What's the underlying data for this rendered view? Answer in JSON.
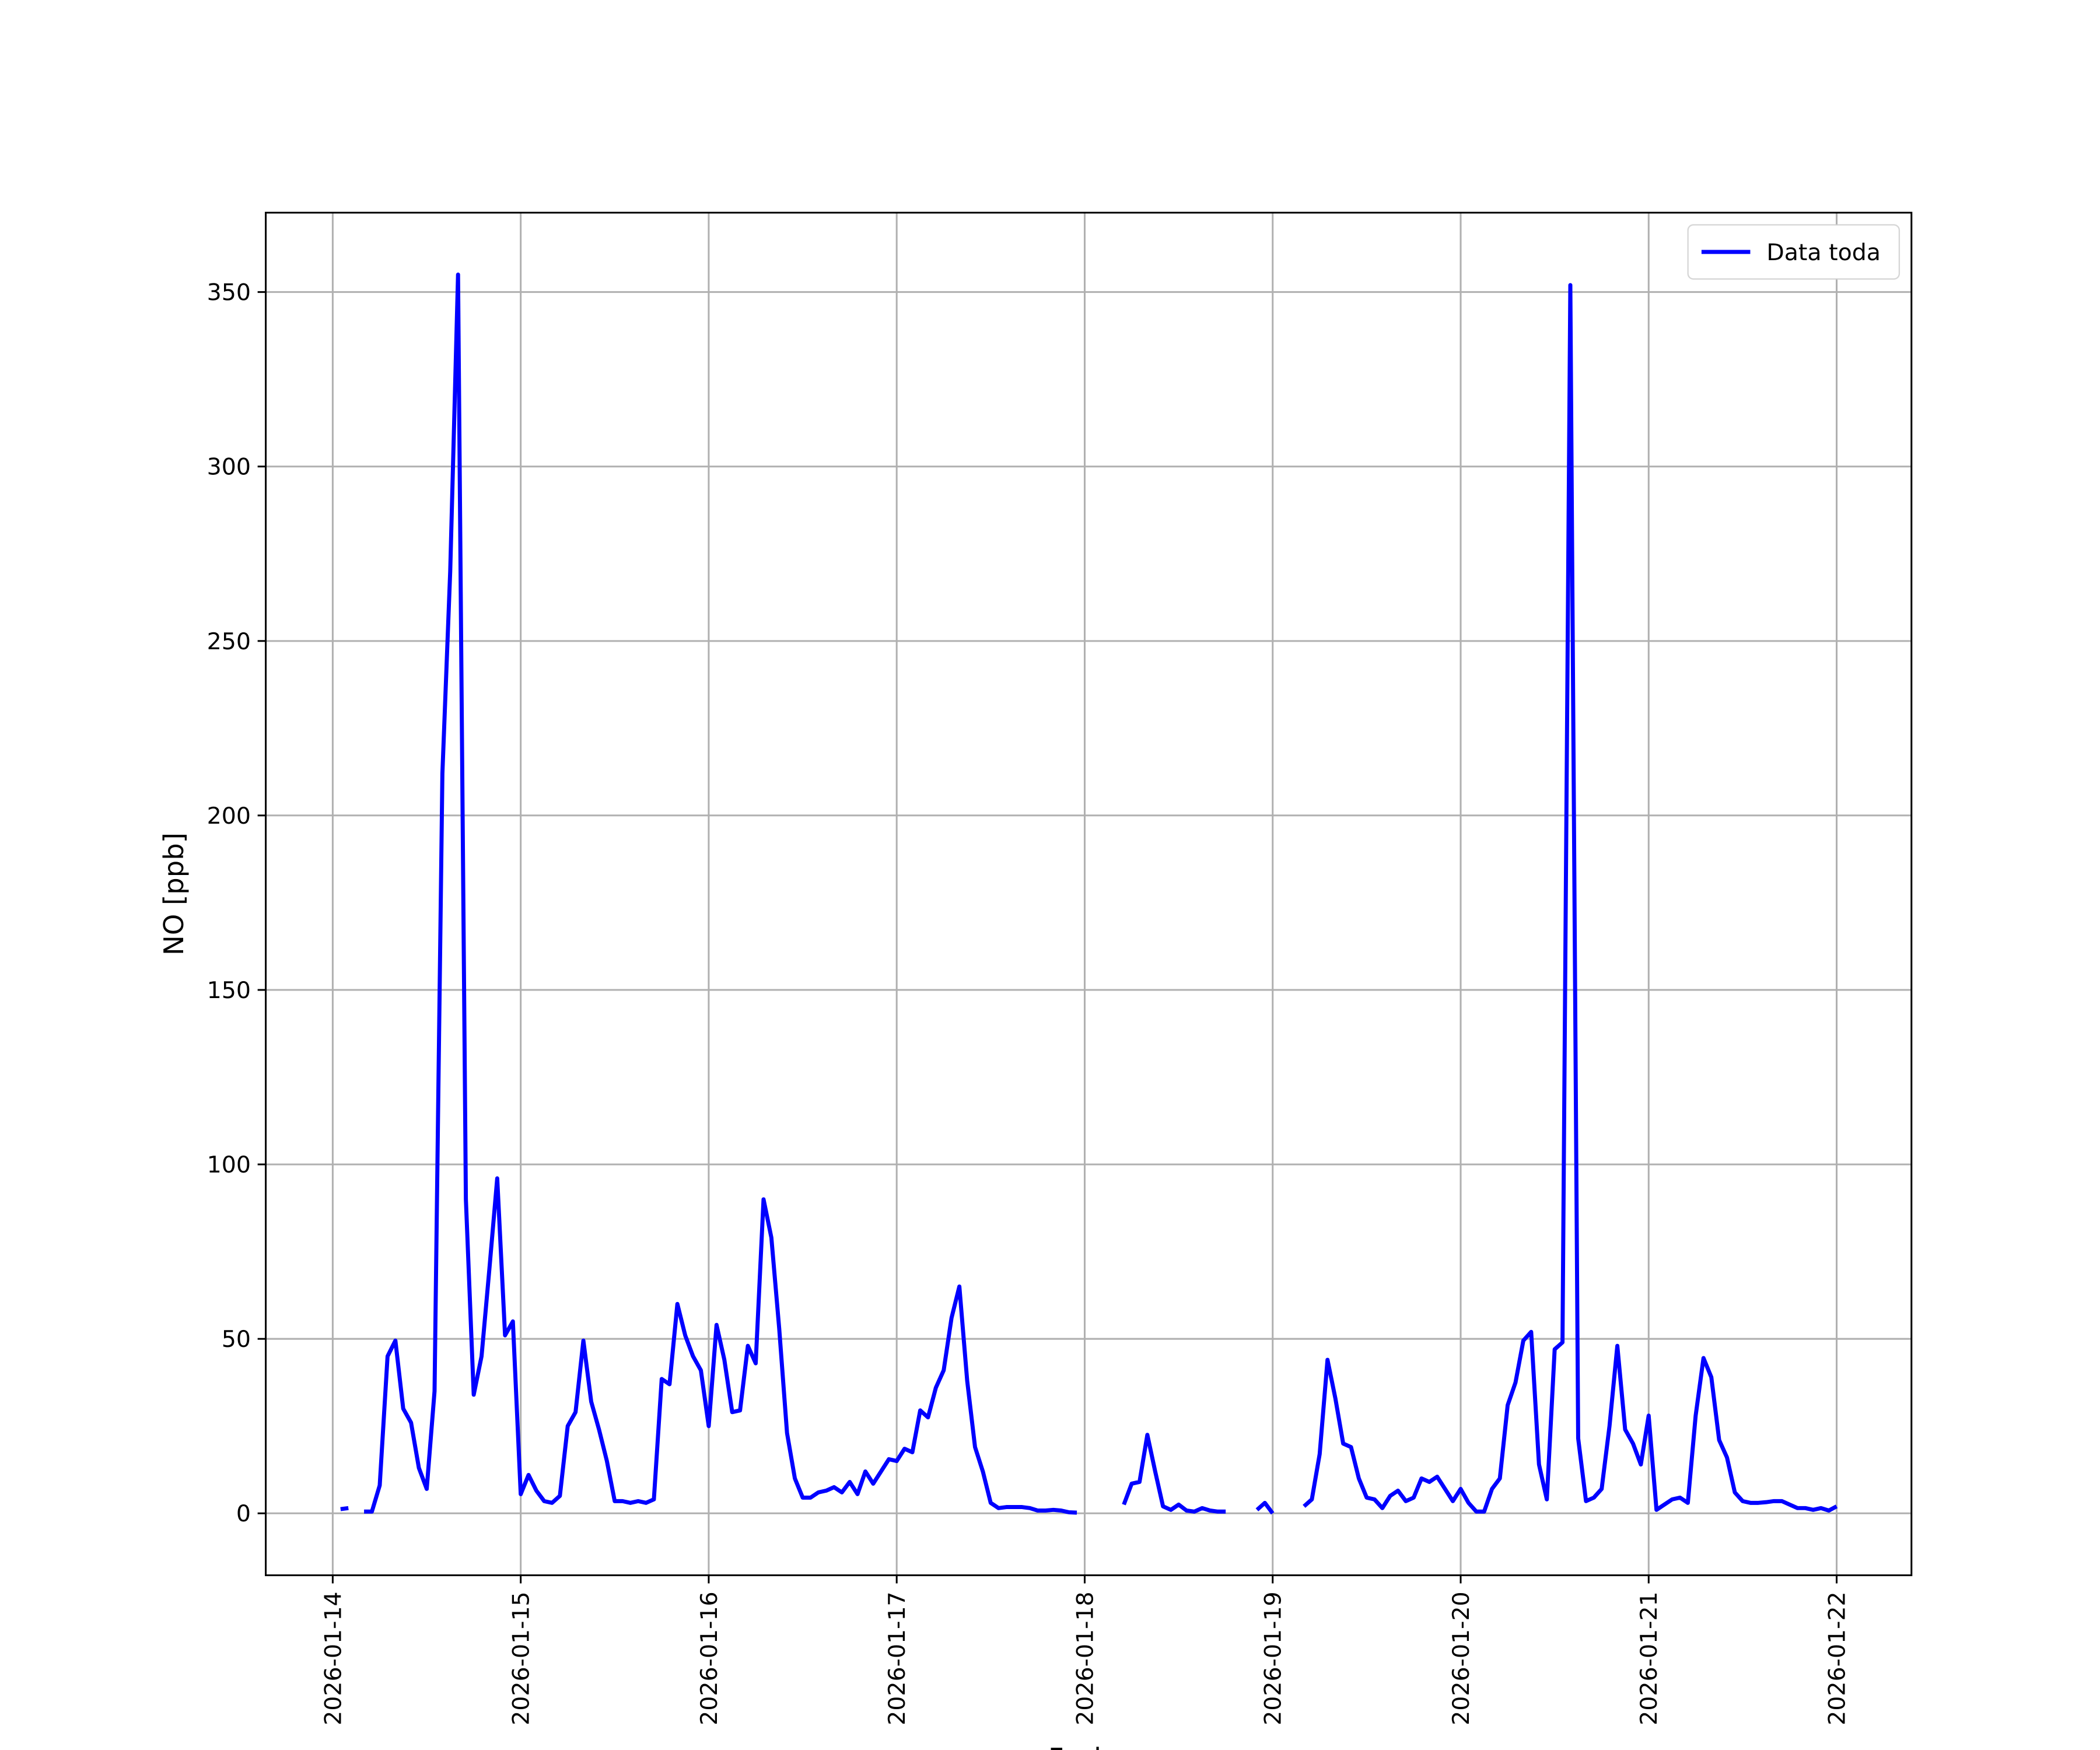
{
  "chart_data": {
    "type": "line",
    "xlabel": "Fecha",
    "ylabel": "NO [ppb]",
    "x": [
      "2026-01-14 00:00",
      "2026-01-14 01:00",
      "2026-01-14 02:00",
      "2026-01-14 03:00",
      "2026-01-14 04:00",
      "2026-01-14 05:00",
      "2026-01-14 06:00",
      "2026-01-14 07:00",
      "2026-01-14 08:00",
      "2026-01-14 09:00",
      "2026-01-14 10:00",
      "2026-01-14 11:00",
      "2026-01-14 12:00",
      "2026-01-14 13:00",
      "2026-01-14 14:00",
      "2026-01-14 15:00",
      "2026-01-14 16:00",
      "2026-01-14 17:00",
      "2026-01-14 18:00",
      "2026-01-14 19:00",
      "2026-01-14 20:00",
      "2026-01-14 21:00",
      "2026-01-14 22:00",
      "2026-01-14 23:00",
      "2026-01-15 00:00",
      "2026-01-15 01:00",
      "2026-01-15 02:00",
      "2026-01-15 03:00",
      "2026-01-15 04:00",
      "2026-01-15 05:00",
      "2026-01-15 06:00",
      "2026-01-15 07:00",
      "2026-01-15 08:00",
      "2026-01-15 09:00",
      "2026-01-15 10:00",
      "2026-01-15 11:00",
      "2026-01-15 12:00",
      "2026-01-15 13:00",
      "2026-01-15 14:00",
      "2026-01-15 15:00",
      "2026-01-15 16:00",
      "2026-01-15 17:00",
      "2026-01-15 18:00",
      "2026-01-15 19:00",
      "2026-01-15 20:00",
      "2026-01-15 21:00",
      "2026-01-15 22:00",
      "2026-01-15 23:00",
      "2026-01-16 00:00",
      "2026-01-16 01:00",
      "2026-01-16 02:00",
      "2026-01-16 03:00",
      "2026-01-16 04:00",
      "2026-01-16 05:00",
      "2026-01-16 06:00",
      "2026-01-16 07:00",
      "2026-01-16 08:00",
      "2026-01-16 09:00",
      "2026-01-16 10:00",
      "2026-01-16 11:00",
      "2026-01-16 12:00",
      "2026-01-16 13:00",
      "2026-01-16 14:00",
      "2026-01-16 15:00",
      "2026-01-16 16:00",
      "2026-01-16 17:00",
      "2026-01-16 18:00",
      "2026-01-16 19:00",
      "2026-01-16 20:00",
      "2026-01-16 21:00",
      "2026-01-16 22:00",
      "2026-01-16 23:00",
      "2026-01-17 00:00",
      "2026-01-17 01:00",
      "2026-01-17 02:00",
      "2026-01-17 03:00",
      "2026-01-17 04:00",
      "2026-01-17 05:00",
      "2026-01-17 06:00",
      "2026-01-17 07:00",
      "2026-01-17 08:00",
      "2026-01-17 09:00",
      "2026-01-17 10:00",
      "2026-01-17 11:00",
      "2026-01-17 12:00",
      "2026-01-17 13:00",
      "2026-01-17 14:00",
      "2026-01-17 15:00",
      "2026-01-17 16:00",
      "2026-01-17 17:00",
      "2026-01-17 18:00",
      "2026-01-17 19:00",
      "2026-01-17 20:00",
      "2026-01-17 21:00",
      "2026-01-17 22:00",
      "2026-01-17 23:00",
      "2026-01-18 00:00",
      "2026-01-18 01:00",
      "2026-01-18 02:00",
      "2026-01-18 03:00",
      "2026-01-18 04:00",
      "2026-01-18 05:00",
      "2026-01-18 06:00",
      "2026-01-18 07:00",
      "2026-01-18 08:00",
      "2026-01-18 09:00",
      "2026-01-18 10:00",
      "2026-01-18 11:00",
      "2026-01-18 12:00",
      "2026-01-18 13:00",
      "2026-01-18 14:00",
      "2026-01-18 15:00",
      "2026-01-18 16:00",
      "2026-01-18 17:00",
      "2026-01-18 18:00",
      "2026-01-18 19:00",
      "2026-01-18 20:00",
      "2026-01-18 21:00",
      "2026-01-18 22:00",
      "2026-01-18 23:00",
      "2026-01-19 00:00",
      "2026-01-19 01:00",
      "2026-01-19 02:00",
      "2026-01-19 03:00",
      "2026-01-19 04:00",
      "2026-01-19 05:00",
      "2026-01-19 06:00",
      "2026-01-19 07:00",
      "2026-01-19 08:00",
      "2026-01-19 09:00",
      "2026-01-19 10:00",
      "2026-01-19 11:00",
      "2026-01-19 12:00",
      "2026-01-19 13:00",
      "2026-01-19 14:00",
      "2026-01-19 15:00",
      "2026-01-19 16:00",
      "2026-01-19 17:00",
      "2026-01-19 18:00",
      "2026-01-19 19:00",
      "2026-01-19 20:00",
      "2026-01-19 21:00",
      "2026-01-19 22:00",
      "2026-01-19 23:00",
      "2026-01-20 00:00",
      "2026-01-20 01:00",
      "2026-01-20 02:00",
      "2026-01-20 03:00",
      "2026-01-20 04:00",
      "2026-01-20 05:00",
      "2026-01-20 06:00",
      "2026-01-20 07:00",
      "2026-01-20 08:00",
      "2026-01-20 09:00",
      "2026-01-20 10:00",
      "2026-01-20 11:00",
      "2026-01-20 12:00",
      "2026-01-20 13:00",
      "2026-01-20 14:00",
      "2026-01-20 15:00",
      "2026-01-20 16:00",
      "2026-01-20 17:00",
      "2026-01-20 18:00",
      "2026-01-20 19:00",
      "2026-01-20 20:00",
      "2026-01-20 21:00",
      "2026-01-20 22:00",
      "2026-01-20 23:00",
      "2026-01-21 00:00",
      "2026-01-21 01:00",
      "2026-01-21 02:00",
      "2026-01-21 03:00",
      "2026-01-21 04:00",
      "2026-01-21 05:00",
      "2026-01-21 06:00",
      "2026-01-21 07:00",
      "2026-01-21 08:00",
      "2026-01-21 09:00",
      "2026-01-21 10:00",
      "2026-01-21 11:00",
      "2026-01-21 12:00",
      "2026-01-21 13:00",
      "2026-01-21 14:00",
      "2026-01-21 15:00",
      "2026-01-21 16:00",
      "2026-01-21 17:00",
      "2026-01-21 18:00",
      "2026-01-21 19:00",
      "2026-01-21 20:00",
      "2026-01-21 21:00",
      "2026-01-21 22:00",
      "2026-01-21 23:00",
      "2026-01-22 00:00"
    ],
    "series": [
      {
        "name": "Data toda",
        "color": "#0000ff",
        "values": [
          null,
          1.2,
          1.5,
          null,
          0.5,
          0.5,
          8,
          45,
          49.5,
          30,
          26,
          13,
          7,
          35,
          212,
          270,
          355,
          90,
          34,
          45,
          70,
          96,
          51,
          55,
          5.5,
          11,
          6.5,
          3.5,
          3,
          5,
          25,
          29,
          49.5,
          32,
          24,
          15,
          3.5,
          3.5,
          3,
          3.5,
          3,
          4,
          38.5,
          37,
          60,
          51,
          45,
          41,
          25,
          54,
          44,
          29,
          29.5,
          48,
          43,
          90,
          79,
          53,
          23,
          10,
          4.5,
          4.5,
          6,
          6.5,
          7.5,
          6,
          9,
          5.5,
          12,
          8.5,
          12,
          15.5,
          15,
          18.5,
          17.5,
          29.5,
          27.5,
          36,
          41,
          56,
          65,
          38,
          19,
          12,
          3,
          1.5,
          1.8,
          1.8,
          1.8,
          1.5,
          0.8,
          0.8,
          1,
          0.8,
          0.3,
          0.2,
          null,
          null,
          null,
          null,
          null,
          2.5,
          8.5,
          9,
          22.5,
          12,
          2,
          1,
          2.5,
          0.8,
          0.5,
          1.5,
          0.8,
          0.5,
          0.5,
          null,
          null,
          null,
          1,
          3,
          0,
          null,
          null,
          null,
          2,
          4,
          17,
          44,
          33,
          20,
          19,
          10,
          4.5,
          4,
          1.5,
          5,
          6.5,
          3.5,
          4.5,
          10,
          9,
          10.5,
          7,
          3.5,
          7,
          3,
          0.5,
          0.5,
          7,
          10,
          31,
          37.5,
          49.5,
          52,
          14,
          4,
          47,
          49,
          352,
          21.5,
          3.5,
          4.5,
          7,
          25,
          48,
          24,
          20,
          14,
          28,
          1,
          2.5,
          4,
          4.5,
          3,
          28,
          44.5,
          39,
          21,
          16,
          6,
          3.5,
          3,
          3,
          3.2,
          3.5,
          3.5,
          2.5,
          1.5,
          1.5,
          1,
          1.5,
          0.8,
          2
        ]
      }
    ],
    "xlim": [
      "2026-01-13 15:27",
      "2026-01-22 09:33"
    ],
    "xticks": [
      "2026-01-14",
      "2026-01-15",
      "2026-01-16",
      "2026-01-17",
      "2026-01-18",
      "2026-01-19",
      "2026-01-20",
      "2026-01-21",
      "2026-01-22"
    ],
    "ylim": [
      -17.75,
      372.75
    ],
    "yticks": [
      0,
      50,
      100,
      150,
      200,
      250,
      300,
      350
    ],
    "grid": true,
    "legend": "upper right"
  }
}
